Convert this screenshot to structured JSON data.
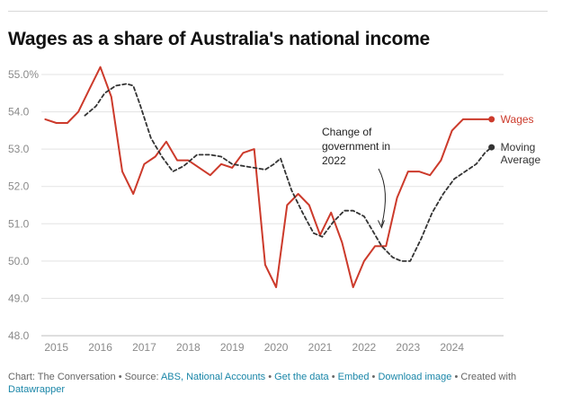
{
  "title": "Wages as a share of Australia's national income",
  "colors": {
    "wages": "#cc3a2b",
    "moving_average": "#333333",
    "grid": "#e3e3e3",
    "axis_text": "#8a8a8a",
    "link": "#1a86a8"
  },
  "chart_data": {
    "type": "line",
    "title": "Wages as a share of Australia's national income",
    "xlabel": "",
    "ylabel": "",
    "xlim": [
      2014.7,
      2025.05
    ],
    "ylim": [
      48.0,
      55.0
    ],
    "y_ticks": [
      48.0,
      49.0,
      50.0,
      51.0,
      52.0,
      53.0,
      54.0,
      55.0
    ],
    "y_tick_labels": [
      "48.0",
      "49.0",
      "50.0",
      "51.0",
      "52.0",
      "53.0",
      "54.0",
      "55.0%"
    ],
    "x_ticks": [
      2015,
      2016,
      2017,
      2018,
      2019,
      2020,
      2021,
      2022,
      2023,
      2024
    ],
    "x_tick_labels": [
      "2015",
      "2016",
      "2017",
      "2018",
      "2019",
      "2020",
      "2021",
      "2022",
      "2023",
      "2024"
    ],
    "grid": true,
    "legend": "direct labels at line ends (right)",
    "series": [
      {
        "name": "Wages",
        "style": "solid",
        "x": [
          2014.75,
          2015.0,
          2015.25,
          2015.5,
          2015.75,
          2016.0,
          2016.25,
          2016.5,
          2016.75,
          2017.0,
          2017.25,
          2017.5,
          2017.75,
          2018.0,
          2018.25,
          2018.5,
          2018.75,
          2019.0,
          2019.25,
          2019.5,
          2019.75,
          2020.0,
          2020.25,
          2020.5,
          2020.75,
          2021.0,
          2021.25,
          2021.5,
          2021.75,
          2022.0,
          2022.25,
          2022.5,
          2022.75,
          2023.0,
          2023.25,
          2023.5,
          2023.75,
          2024.0,
          2024.25,
          2024.5,
          2024.75,
          2024.9
        ],
        "values": [
          53.8,
          53.7,
          53.7,
          54.0,
          54.6,
          55.2,
          54.4,
          52.4,
          51.8,
          52.6,
          52.8,
          53.2,
          52.7,
          52.7,
          52.5,
          52.3,
          52.6,
          52.5,
          52.9,
          53.0,
          49.9,
          49.3,
          51.5,
          51.8,
          51.5,
          50.7,
          51.3,
          50.5,
          49.3,
          50.0,
          50.4,
          50.4,
          51.7,
          52.4,
          52.4,
          52.3,
          52.7,
          53.5,
          53.8,
          53.8,
          53.8,
          53.8
        ]
      },
      {
        "name": "Moving Average",
        "style": "dashed",
        "x": [
          2015.65,
          2015.9,
          2016.1,
          2016.35,
          2016.6,
          2016.75,
          2016.9,
          2017.15,
          2017.4,
          2017.65,
          2017.9,
          2018.2,
          2018.5,
          2018.75,
          2019.0,
          2019.25,
          2019.5,
          2019.75,
          2019.95,
          2020.1,
          2020.35,
          2020.6,
          2020.85,
          2021.05,
          2021.3,
          2021.55,
          2021.75,
          2022.0,
          2022.2,
          2022.4,
          2022.65,
          2022.85,
          2023.05,
          2023.3,
          2023.55,
          2023.8,
          2024.05,
          2024.3,
          2024.55,
          2024.75,
          2024.9
        ],
        "values": [
          53.9,
          54.15,
          54.5,
          54.7,
          54.75,
          54.7,
          54.2,
          53.3,
          52.8,
          52.4,
          52.55,
          52.85,
          52.85,
          52.8,
          52.6,
          52.55,
          52.5,
          52.45,
          52.6,
          52.75,
          51.9,
          51.3,
          50.75,
          50.65,
          51.05,
          51.35,
          51.35,
          51.2,
          50.8,
          50.4,
          50.1,
          50.0,
          50.0,
          50.6,
          51.3,
          51.8,
          52.2,
          52.4,
          52.6,
          52.9,
          53.05
        ]
      }
    ],
    "end_labels": [
      {
        "series": "Wages",
        "lines": [
          "Wages"
        ]
      },
      {
        "series": "Moving Average",
        "lines": [
          "Moving",
          "Average"
        ]
      }
    ],
    "annotations": [
      {
        "lines": [
          "Change of",
          "government in",
          "2022"
        ],
        "points_to": {
          "x": 2022.4,
          "y": 50.9
        }
      }
    ]
  },
  "footer": {
    "source_prefix": "Chart: The Conversation • Source: ",
    "source_link": "ABS, National Accounts",
    "separator_1": " • ",
    "get_data": "Get the data",
    "separator_2": " • ",
    "embed": "Embed",
    "separator_3": " • ",
    "download": "Download image",
    "created_with": " • Created with ",
    "datawrapper": "Datawrapper"
  }
}
